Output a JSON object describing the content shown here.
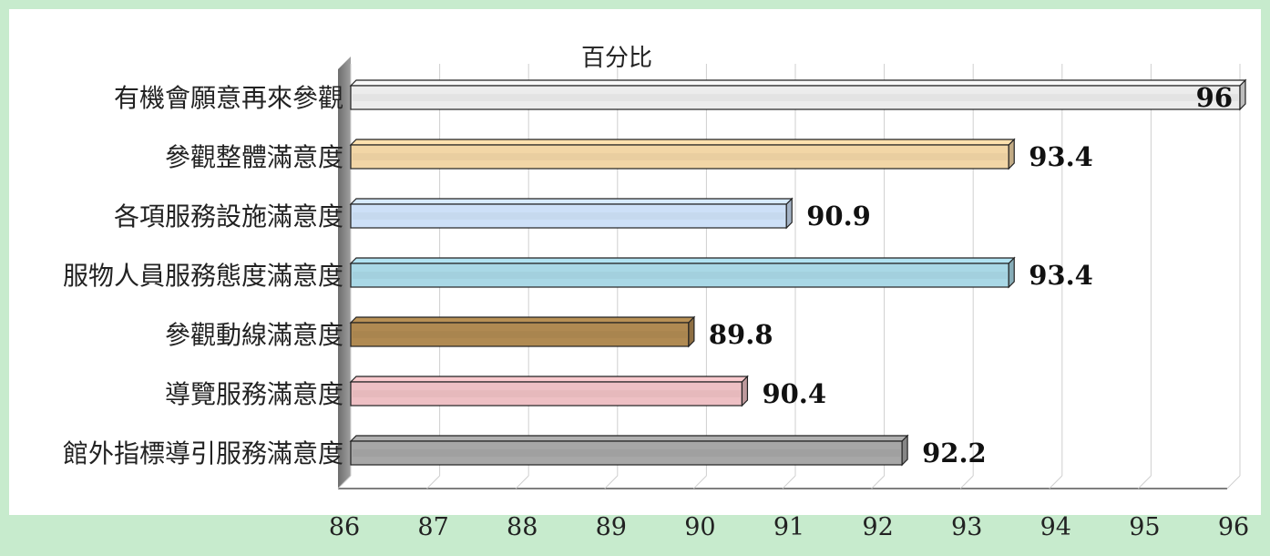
{
  "chart_data": {
    "type": "bar",
    "orientation": "horizontal",
    "subtitle": "百分比",
    "categories": [
      "有機會願意再來參觀",
      "參觀整體滿意度",
      "各項服務設施滿意度",
      "服物人員服務態度滿意度",
      "參觀動線滿意度",
      "導覽服務滿意度",
      "館外指標導引服務滿意度"
    ],
    "values": [
      96,
      93.4,
      90.9,
      93.4,
      89.8,
      90.4,
      92.2
    ],
    "data_labels": [
      "96",
      "93.4",
      "90.9",
      "93.4",
      "89.8",
      "90.4",
      "92.2"
    ],
    "xlim": [
      86,
      96
    ],
    "xticks": [
      "86",
      "87",
      "88",
      "89",
      "90",
      "91",
      "92",
      "93",
      "94",
      "95",
      "96"
    ],
    "grid": true,
    "legend": "none",
    "bar_colors": [
      "#ececec",
      "#f2d6a6",
      "#cde0f7",
      "#a9d8e6",
      "#b08a52",
      "#eec0c4",
      "#a7a7a7"
    ],
    "style": {
      "page_background": "#c7ebcd",
      "plot_background": "#ffffff",
      "floor_color": "#8c8c8c",
      "grid_color": "#cfcfcf"
    }
  }
}
